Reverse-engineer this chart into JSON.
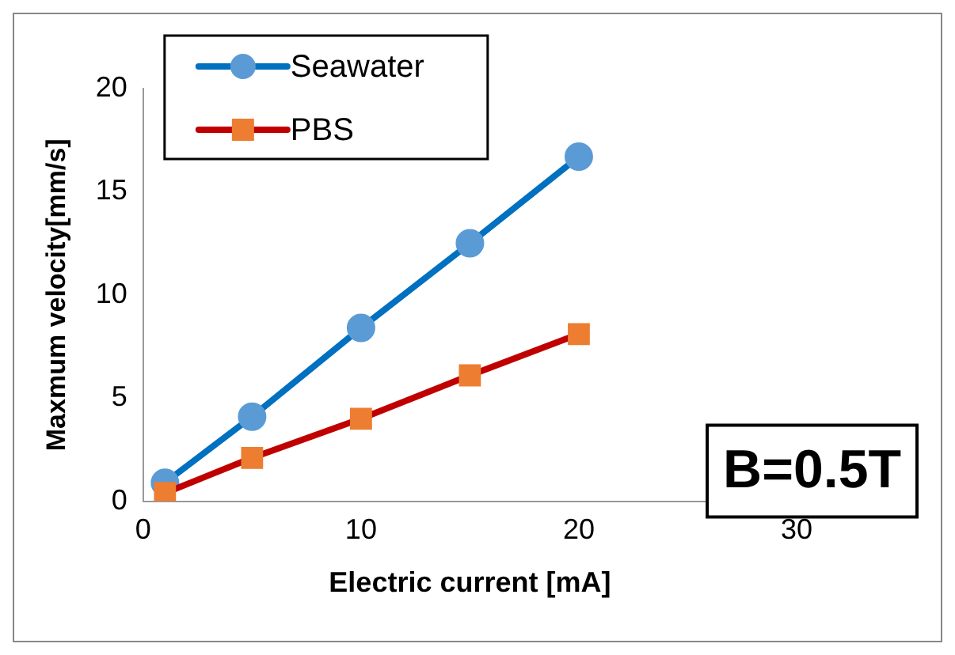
{
  "chart_data": {
    "type": "line",
    "xlabel": "Electric current [mA]",
    "ylabel": "Maxmum velocity[mm/s]",
    "x": [
      1,
      5,
      10,
      15,
      20
    ],
    "series": [
      {
        "name": "Seawater",
        "color": "#0070c0",
        "marker": "circle",
        "values": [
          0.9,
          4.1,
          8.4,
          12.5,
          16.7
        ]
      },
      {
        "name": "PBS",
        "color": "#c00000",
        "marker": "square",
        "values": [
          0.4,
          2.1,
          4.0,
          6.1,
          8.1
        ]
      }
    ],
    "xlim": [
      0,
      30
    ],
    "xticks": [
      0,
      10,
      20,
      30
    ],
    "ylim": [
      0,
      20
    ],
    "yticks": [
      0,
      5,
      10,
      15,
      20
    ],
    "grid": false,
    "legend": "top left",
    "annotations": [
      "B=0.5T"
    ]
  }
}
